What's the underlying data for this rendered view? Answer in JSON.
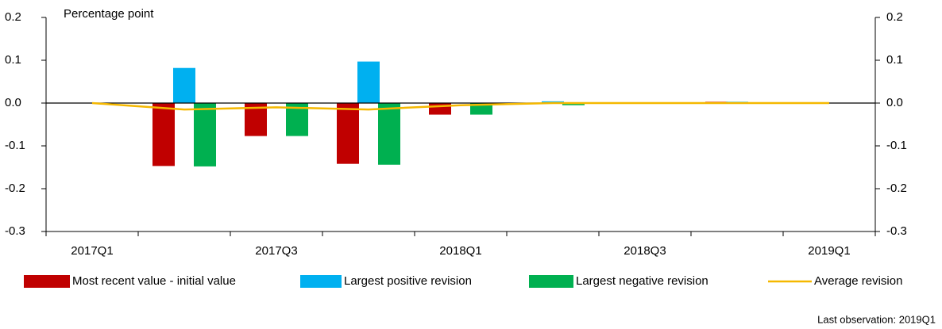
{
  "chart_data": {
    "type": "bar",
    "y_label": "Percentage point",
    "note": "Last observation: 2019Q1",
    "categories": [
      "2017Q1",
      null,
      "2017Q3",
      null,
      "2018Q1",
      null,
      "2018Q3",
      null,
      "2019Q1"
    ],
    "series": [
      {
        "name": "Most recent value - initial value",
        "color": "#c00000",
        "values": [
          0,
          -0.147,
          -0.077,
          -0.142,
          -0.027,
          0,
          0,
          0.003,
          0
        ]
      },
      {
        "name": "Largest positive revision",
        "color": "#00b0f0",
        "values": [
          0,
          0.082,
          0,
          0.097,
          0,
          0.004,
          0,
          0.003,
          0
        ]
      },
      {
        "name": "Largest negative revision",
        "color": "#00b050",
        "values": [
          0,
          -0.148,
          -0.077,
          -0.144,
          -0.027,
          -0.005,
          0,
          0,
          0
        ]
      },
      {
        "name": "Average revision",
        "color": "#f5b800",
        "type": "line",
        "values": [
          0,
          -0.015,
          -0.01,
          -0.015,
          -0.005,
          0,
          0,
          0,
          0
        ]
      }
    ],
    "ylim": [
      -0.3,
      0.2
    ],
    "yticks": [
      0.2,
      0.1,
      {
        "value": 0,
        "label": "0.0"
      },
      -0.1,
      -0.2,
      -0.3
    ],
    "y2lim": [
      -0.3,
      0.2
    ],
    "y2ticks": [
      0.2,
      0.1,
      {
        "value": 0,
        "label": "0.0"
      },
      -0.1,
      -0.2,
      -0.3
    ]
  }
}
